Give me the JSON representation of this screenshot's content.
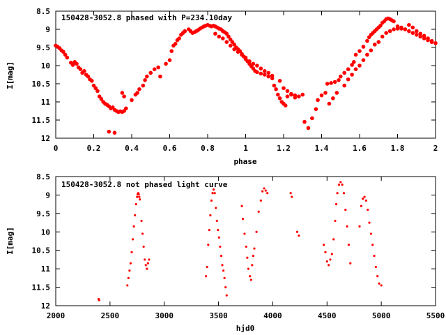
{
  "chart_data": [
    {
      "type": "scatter",
      "title": "150428-3052.8 phased with P=234.10day",
      "xlabel": "phase",
      "ylabel": "I[mag]",
      "xlim": [
        0,
        2
      ],
      "ylim": [
        8.5,
        12
      ],
      "y_inverted": true,
      "x_ticks": [
        "0",
        "0.2",
        "0.4",
        "0.6",
        "0.8",
        "1",
        "1.2",
        "1.4",
        "1.6",
        "1.8",
        "2"
      ],
      "y_ticks": [
        "8.5",
        "9",
        "9.5",
        "10",
        "10.5",
        "11",
        "11.5",
        "12"
      ],
      "marker_color": "#ff0000",
      "grid": false,
      "points": [
        [
          0.0,
          9.45
        ],
        [
          0.01,
          9.48
        ],
        [
          0.02,
          9.52
        ],
        [
          0.03,
          9.58
        ],
        [
          0.04,
          9.62
        ],
        [
          0.05,
          9.7
        ],
        [
          0.06,
          9.78
        ],
        [
          0.08,
          9.92
        ],
        [
          0.09,
          9.98
        ],
        [
          0.1,
          9.9
        ],
        [
          0.11,
          9.95
        ],
        [
          0.12,
          10.05
        ],
        [
          0.13,
          10.1
        ],
        [
          0.14,
          10.2
        ],
        [
          0.15,
          10.15
        ],
        [
          0.16,
          10.25
        ],
        [
          0.17,
          10.3
        ],
        [
          0.18,
          10.38
        ],
        [
          0.19,
          10.42
        ],
        [
          0.2,
          10.55
        ],
        [
          0.21,
          10.62
        ],
        [
          0.22,
          10.7
        ],
        [
          0.23,
          10.85
        ],
        [
          0.24,
          10.92
        ],
        [
          0.25,
          11.0
        ],
        [
          0.26,
          11.05
        ],
        [
          0.27,
          11.08
        ],
        [
          0.28,
          11.12
        ],
        [
          0.29,
          11.18
        ],
        [
          0.3,
          11.15
        ],
        [
          0.31,
          11.22
        ],
        [
          0.32,
          11.25
        ],
        [
          0.33,
          11.28
        ],
        [
          0.34,
          11.26
        ],
        [
          0.35,
          11.28
        ],
        [
          0.36,
          11.25
        ],
        [
          0.37,
          11.18
        ],
        [
          0.28,
          11.82
        ],
        [
          0.31,
          11.85
        ],
        [
          0.35,
          10.75
        ],
        [
          0.36,
          10.85
        ],
        [
          0.4,
          10.95
        ],
        [
          0.42,
          10.8
        ],
        [
          0.43,
          10.75
        ],
        [
          0.44,
          10.65
        ],
        [
          0.46,
          10.55
        ],
        [
          0.47,
          10.4
        ],
        [
          0.48,
          10.3
        ],
        [
          0.5,
          10.2
        ],
        [
          0.52,
          10.1
        ],
        [
          0.54,
          10.05
        ],
        [
          0.55,
          10.3
        ],
        [
          0.58,
          9.95
        ],
        [
          0.6,
          9.85
        ],
        [
          0.61,
          9.6
        ],
        [
          0.62,
          9.45
        ],
        [
          0.63,
          9.4
        ],
        [
          0.64,
          9.3
        ],
        [
          0.65,
          9.25
        ],
        [
          0.66,
          9.15
        ],
        [
          0.67,
          9.1
        ],
        [
          0.68,
          9.05
        ],
        [
          0.7,
          9.0
        ],
        [
          0.71,
          9.05
        ],
        [
          0.72,
          9.1
        ],
        [
          0.73,
          9.08
        ],
        [
          0.74,
          9.05
        ],
        [
          0.75,
          9.02
        ],
        [
          0.76,
          8.98
        ],
        [
          0.77,
          8.95
        ],
        [
          0.78,
          8.92
        ],
        [
          0.79,
          8.9
        ],
        [
          0.8,
          8.88
        ],
        [
          0.81,
          8.9
        ],
        [
          0.82,
          8.92
        ],
        [
          0.83,
          8.9
        ],
        [
          0.84,
          8.92
        ],
        [
          0.85,
          8.95
        ],
        [
          0.86,
          8.98
        ],
        [
          0.87,
          9.0
        ],
        [
          0.88,
          9.05
        ],
        [
          0.89,
          9.08
        ],
        [
          0.9,
          9.12
        ],
        [
          0.91,
          9.2
        ],
        [
          0.92,
          9.28
        ],
        [
          0.93,
          9.35
        ],
        [
          0.94,
          9.42
        ],
        [
          0.95,
          9.5
        ],
        [
          0.96,
          9.55
        ],
        [
          0.97,
          9.6
        ],
        [
          0.98,
          9.68
        ],
        [
          0.99,
          9.75
        ],
        [
          1.0,
          9.82
        ],
        [
          1.01,
          9.88
        ],
        [
          1.02,
          9.95
        ],
        [
          1.03,
          10.02
        ],
        [
          1.04,
          10.08
        ],
        [
          1.05,
          10.15
        ],
        [
          1.06,
          10.18
        ],
        [
          1.08,
          10.22
        ],
        [
          1.1,
          10.25
        ],
        [
          1.12,
          10.3
        ],
        [
          1.14,
          10.35
        ],
        [
          1.15,
          10.55
        ],
        [
          1.16,
          10.65
        ],
        [
          1.17,
          10.8
        ],
        [
          1.18,
          10.9
        ],
        [
          1.19,
          11.0
        ],
        [
          1.2,
          11.05
        ],
        [
          1.21,
          11.1
        ],
        [
          1.22,
          10.85
        ],
        [
          1.24,
          10.8
        ],
        [
          1.26,
          10.82
        ],
        [
          1.28,
          10.85
        ],
        [
          1.3,
          10.8
        ],
        [
          1.31,
          11.55
        ],
        [
          1.33,
          11.72
        ],
        [
          1.35,
          11.45
        ],
        [
          1.37,
          11.2
        ],
        [
          1.38,
          10.95
        ],
        [
          1.4,
          10.82
        ],
        [
          1.42,
          10.75
        ],
        [
          1.43,
          10.5
        ],
        [
          1.45,
          10.48
        ],
        [
          1.47,
          10.45
        ],
        [
          1.49,
          10.4
        ],
        [
          1.5,
          10.3
        ],
        [
          1.52,
          10.2
        ],
        [
          1.54,
          10.1
        ],
        [
          1.56,
          9.98
        ],
        [
          1.57,
          9.9
        ],
        [
          1.58,
          9.7
        ],
        [
          1.6,
          9.6
        ],
        [
          1.62,
          9.48
        ],
        [
          1.64,
          9.32
        ],
        [
          1.65,
          9.22
        ],
        [
          1.66,
          9.15
        ],
        [
          1.67,
          9.1
        ],
        [
          1.68,
          9.05
        ],
        [
          1.69,
          9.0
        ],
        [
          1.7,
          8.95
        ],
        [
          1.71,
          8.9
        ],
        [
          1.72,
          8.82
        ],
        [
          1.73,
          8.78
        ],
        [
          1.74,
          8.72
        ],
        [
          1.75,
          8.7
        ],
        [
          1.76,
          8.72
        ],
        [
          1.77,
          8.75
        ],
        [
          1.78,
          8.78
        ],
        [
          1.8,
          8.92
        ],
        [
          1.82,
          8.95
        ],
        [
          1.84,
          9.0
        ],
        [
          1.86,
          9.05
        ],
        [
          1.88,
          9.1
        ],
        [
          1.9,
          9.15
        ],
        [
          1.92,
          9.2
        ],
        [
          1.94,
          9.25
        ],
        [
          1.96,
          9.3
        ],
        [
          1.98,
          9.35
        ],
        [
          2.0,
          9.38
        ],
        [
          0.84,
          9.12
        ],
        [
          0.86,
          9.2
        ],
        [
          0.88,
          9.25
        ],
        [
          0.9,
          9.35
        ],
        [
          0.92,
          9.45
        ],
        [
          0.94,
          9.55
        ],
        [
          0.96,
          9.62
        ],
        [
          0.98,
          9.7
        ],
        [
          1.0,
          9.78
        ],
        [
          1.02,
          9.88
        ],
        [
          1.04,
          9.95
        ],
        [
          1.06,
          10.0
        ],
        [
          1.08,
          10.08
        ],
        [
          1.1,
          10.15
        ],
        [
          1.12,
          10.2
        ],
        [
          1.14,
          10.28
        ],
        [
          1.18,
          10.42
        ],
        [
          1.2,
          10.62
        ],
        [
          1.22,
          10.7
        ],
        [
          1.24,
          10.78
        ],
        [
          1.26,
          10.88
        ],
        [
          1.44,
          11.05
        ],
        [
          1.46,
          10.9
        ],
        [
          1.48,
          10.75
        ],
        [
          1.52,
          10.55
        ],
        [
          1.54,
          10.38
        ],
        [
          1.56,
          10.25
        ],
        [
          1.58,
          10.1
        ],
        [
          1.6,
          10.0
        ],
        [
          1.62,
          9.85
        ],
        [
          1.64,
          9.7
        ],
        [
          1.66,
          9.58
        ],
        [
          1.68,
          9.42
        ],
        [
          1.7,
          9.35
        ],
        [
          1.72,
          9.2
        ],
        [
          1.74,
          9.1
        ],
        [
          1.76,
          9.05
        ],
        [
          1.78,
          9.0
        ],
        [
          1.8,
          8.98
        ],
        [
          1.82,
          8.98
        ],
        [
          1.84,
          9.0
        ],
        [
          1.86,
          8.88
        ],
        [
          1.88,
          8.95
        ],
        [
          1.9,
          9.05
        ],
        [
          1.92,
          9.12
        ],
        [
          1.94,
          9.18
        ],
        [
          1.96,
          9.25
        ],
        [
          1.98,
          9.32
        ]
      ]
    },
    {
      "type": "scatter",
      "title": "150428-3052.8 not phased light curve",
      "xlabel": "hjd0",
      "ylabel": "I[mag]",
      "xlim": [
        2000,
        5500
      ],
      "ylim": [
        8.5,
        12
      ],
      "y_inverted": true,
      "x_ticks": [
        "2000",
        "2500",
        "3000",
        "3500",
        "4000",
        "4500",
        "5000",
        "5500"
      ],
      "y_ticks": [
        "8.5",
        "9",
        "9.5",
        "10",
        "10.5",
        "11",
        "11.5",
        "12"
      ],
      "marker_color": "#ff0000",
      "grid": false,
      "points": [
        [
          2395,
          11.82
        ],
        [
          2400,
          11.85
        ],
        [
          2660,
          11.45
        ],
        [
          2670,
          11.25
        ],
        [
          2680,
          11.05
        ],
        [
          2690,
          10.85
        ],
        [
          2700,
          10.55
        ],
        [
          2710,
          10.2
        ],
        [
          2720,
          9.85
        ],
        [
          2730,
          9.55
        ],
        [
          2740,
          9.25
        ],
        [
          2750,
          9.05
        ],
        [
          2755,
          8.98
        ],
        [
          2760,
          8.95
        ],
        [
          2765,
          8.98
        ],
        [
          2770,
          9.05
        ],
        [
          2775,
          9.12
        ],
        [
          2790,
          9.7
        ],
        [
          2800,
          10.05
        ],
        [
          2810,
          10.4
        ],
        [
          2820,
          10.75
        ],
        [
          2830,
          10.9
        ],
        [
          2840,
          11.0
        ],
        [
          2850,
          10.85
        ],
        [
          2860,
          10.75
        ],
        [
          3385,
          11.2
        ],
        [
          3395,
          10.95
        ],
        [
          3405,
          10.35
        ],
        [
          3415,
          9.95
        ],
        [
          3425,
          9.55
        ],
        [
          3435,
          9.15
        ],
        [
          3445,
          8.95
        ],
        [
          3455,
          8.85
        ],
        [
          3465,
          8.95
        ],
        [
          3475,
          9.35
        ],
        [
          3485,
          9.7
        ],
        [
          3495,
          9.95
        ],
        [
          3505,
          10.15
        ],
        [
          3515,
          10.4
        ],
        [
          3525,
          10.65
        ],
        [
          3535,
          10.9
        ],
        [
          3545,
          11.05
        ],
        [
          3555,
          11.25
        ],
        [
          3565,
          11.5
        ],
        [
          3575,
          11.72
        ],
        [
          3715,
          9.3
        ],
        [
          3725,
          9.65
        ],
        [
          3740,
          10.05
        ],
        [
          3755,
          10.4
        ],
        [
          3765,
          10.7
        ],
        [
          3775,
          11.0
        ],
        [
          3790,
          11.2
        ],
        [
          3800,
          11.3
        ],
        [
          3810,
          10.9
        ],
        [
          3820,
          10.65
        ],
        [
          3830,
          10.45
        ],
        [
          3850,
          10.0
        ],
        [
          3870,
          9.45
        ],
        [
          3890,
          9.15
        ],
        [
          3905,
          8.9
        ],
        [
          3920,
          8.82
        ],
        [
          3935,
          8.88
        ],
        [
          3950,
          8.95
        ],
        [
          4165,
          8.95
        ],
        [
          4175,
          9.05
        ],
        [
          4225,
          10.0
        ],
        [
          4240,
          10.1
        ],
        [
          4470,
          10.35
        ],
        [
          4485,
          10.55
        ],
        [
          4500,
          10.8
        ],
        [
          4515,
          10.9
        ],
        [
          4530,
          10.75
        ],
        [
          4545,
          10.6
        ],
        [
          4560,
          10.2
        ],
        [
          4575,
          9.7
        ],
        [
          4585,
          9.25
        ],
        [
          4595,
          8.95
        ],
        [
          4610,
          8.72
        ],
        [
          4625,
          8.65
        ],
        [
          4640,
          8.72
        ],
        [
          4655,
          8.95
        ],
        [
          4670,
          9.4
        ],
        [
          4685,
          9.85
        ],
        [
          4700,
          10.35
        ],
        [
          4715,
          10.85
        ],
        [
          4800,
          9.85
        ],
        [
          4815,
          9.3
        ],
        [
          4830,
          9.1
        ],
        [
          4845,
          9.05
        ],
        [
          4860,
          9.15
        ],
        [
          4875,
          9.4
        ],
        [
          4890,
          9.75
        ],
        [
          4905,
          10.05
        ],
        [
          4920,
          10.35
        ],
        [
          4935,
          10.65
        ],
        [
          4950,
          10.95
        ],
        [
          4965,
          11.2
        ],
        [
          4980,
          11.4
        ],
        [
          5000,
          11.45
        ]
      ]
    }
  ]
}
